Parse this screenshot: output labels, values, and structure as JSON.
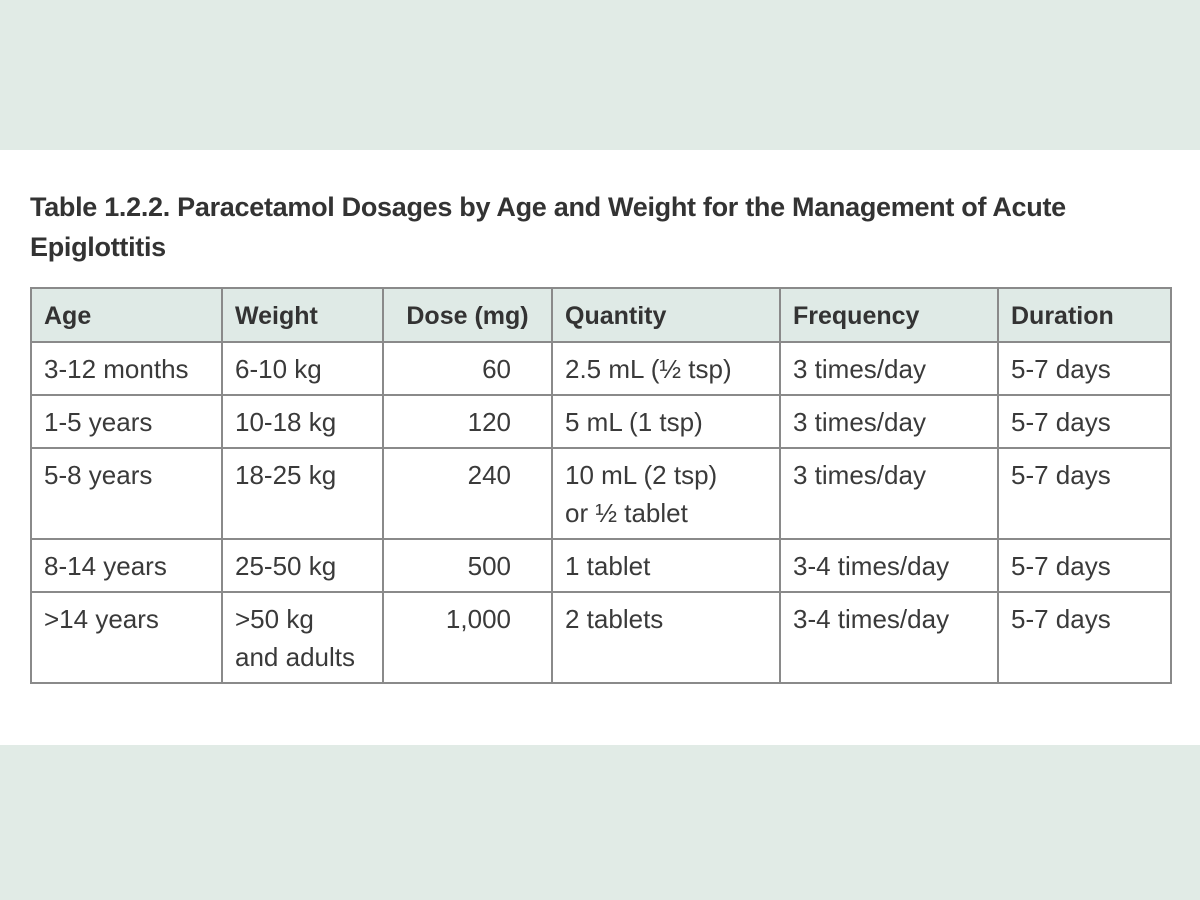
{
  "title": "Table 1.2.2. Paracetamol Dosages by Age and Weight for the Management of Acute Epiglottitis",
  "table": {
    "header": [
      "Age",
      "Weight",
      "Dose (mg)",
      "Quantity",
      "Frequency",
      "Duration"
    ],
    "rows": [
      [
        "3-12 months",
        "6-10 kg",
        "60",
        "2.5 mL (½ tsp)",
        "3 times/day",
        "5-7 days"
      ],
      [
        "1-5 years",
        "10-18 kg",
        "120",
        "5 mL (1 tsp)",
        "3 times/day",
        "5-7 days"
      ],
      [
        "5-8 years",
        "18-25 kg",
        "240",
        "10 mL (2 tsp)\nor ½ tablet",
        "3 times/day",
        "5-7 days"
      ],
      [
        "8-14 years",
        "25-50 kg",
        "500",
        "1 tablet",
        "3-4 times/day",
        "5-7 days"
      ],
      [
        ">14 years",
        ">50 kg\nand adults",
        "1,000",
        "2 tablets",
        "3-4 times/day",
        "5-7 days"
      ]
    ]
  }
}
